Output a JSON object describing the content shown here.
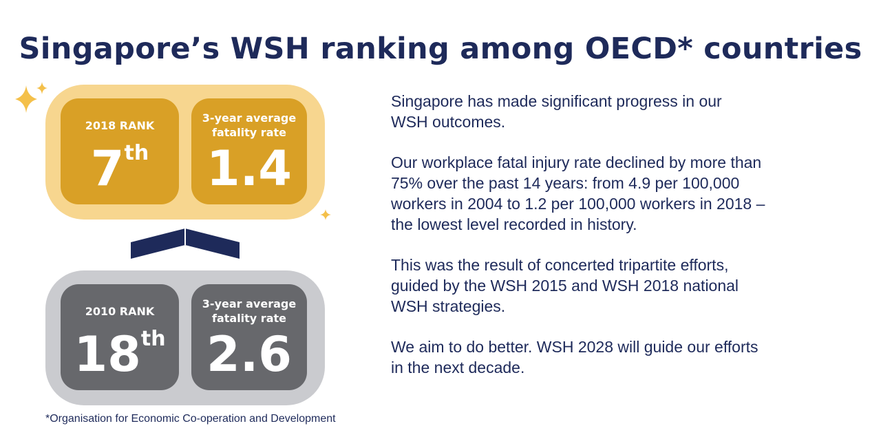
{
  "title": "Singapore’s WSH ranking among OECD* countries",
  "top_panel": {
    "rank_label": "2018 RANK",
    "rank_number": "7",
    "rank_suffix": "th",
    "rate_label_line1": "3-year average",
    "rate_label_line2": "fatality rate",
    "rate_value": "1.4"
  },
  "bottom_panel": {
    "rank_label": "2010 RANK",
    "rank_number": "18",
    "rank_suffix": "th",
    "rate_label_line1": "3-year average",
    "rate_label_line2": "fatality rate",
    "rate_value": "2.6"
  },
  "paragraphs": [
    "Singapore has made significant progress in our\nWSH outcomes.",
    "Our workplace fatal injury rate declined by more than\n75% over the past 14 years: from 4.9 per 100,000\nworkers in 2004 to 1.2 per 100,000 workers in 2018 –\nthe lowest level recorded in history.",
    "This was the result of concerted tripartite efforts,\nguided by the WSH 2015 and WSH 2018 national\nWSH strategies.",
    "We aim to do better. WSH 2028 will guide our efforts\nin the next decade."
  ],
  "footnote": "*Organisation for Economic Co-operation and Development",
  "icons": [
    "sparkle-icon",
    "up-arrow-icon"
  ],
  "colors": {
    "navy": "#1e2a5a",
    "gold": "#d9a026",
    "gold_light": "#f7d68f",
    "grey": "#67686c",
    "grey_light": "#cacbcf"
  }
}
